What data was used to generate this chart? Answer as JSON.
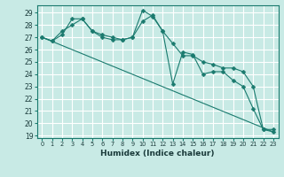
{
  "xlabel": "Humidex (Indice chaleur)",
  "ylabel": "",
  "bg_color": "#c8eae5",
  "grid_color": "#ffffff",
  "line_color": "#1a7a6e",
  "xlim": [
    -0.5,
    23.5
  ],
  "ylim": [
    18.8,
    29.6
  ],
  "yticks": [
    19,
    20,
    21,
    22,
    23,
    24,
    25,
    26,
    27,
    28,
    29
  ],
  "xticks": [
    0,
    1,
    2,
    3,
    4,
    5,
    6,
    7,
    8,
    9,
    10,
    11,
    12,
    13,
    14,
    15,
    16,
    17,
    18,
    19,
    20,
    21,
    22,
    23
  ],
  "series": [
    {
      "x": [
        0,
        1,
        2,
        3,
        4,
        5,
        6,
        7,
        8,
        9,
        10,
        11,
        12,
        13,
        14,
        15,
        16,
        17,
        18,
        19,
        20,
        21,
        22,
        23
      ],
      "y": [
        27.0,
        26.7,
        27.2,
        28.5,
        28.5,
        27.5,
        27.0,
        26.8,
        26.8,
        27.0,
        28.3,
        28.8,
        27.5,
        26.5,
        25.5,
        25.5,
        25.0,
        24.8,
        24.5,
        24.5,
        24.2,
        23.0,
        19.5,
        19.5
      ],
      "marker": true
    },
    {
      "x": [
        0,
        1,
        2,
        3,
        4,
        5,
        6,
        7,
        8,
        9,
        10,
        11,
        12,
        13,
        14,
        15,
        16,
        17,
        18,
        19,
        20,
        21,
        22,
        23
      ],
      "y": [
        27.0,
        26.7,
        27.5,
        28.0,
        28.5,
        27.5,
        27.2,
        27.0,
        26.8,
        27.0,
        29.2,
        28.7,
        27.5,
        23.2,
        25.8,
        25.6,
        24.0,
        24.2,
        24.2,
        23.5,
        23.0,
        21.2,
        19.5,
        19.3
      ],
      "marker": true
    },
    {
      "x": [
        0,
        23
      ],
      "y": [
        27.0,
        19.3
      ],
      "marker": false
    }
  ]
}
